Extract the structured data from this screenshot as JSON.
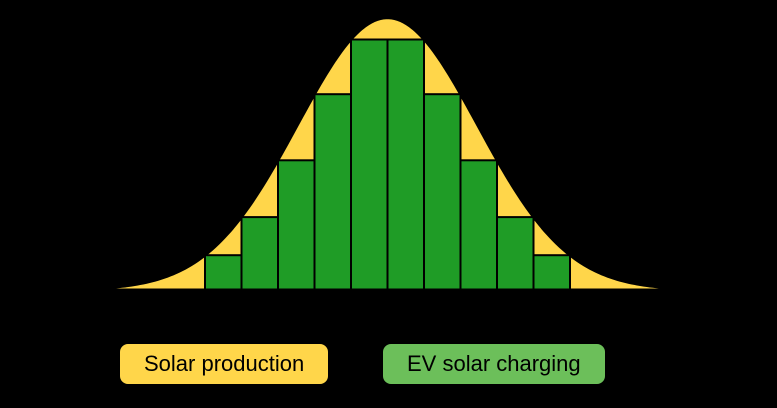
{
  "chart_data": {
    "type": "area",
    "title": "",
    "axes_visible": false,
    "xlabel": "",
    "ylabel": "",
    "x_range": [
      0,
      1
    ],
    "y_range": [
      0,
      1
    ],
    "baseline": 0,
    "series": [
      {
        "name": "Solar production",
        "kind": "smooth-bell-curve",
        "shape": "gaussian",
        "color": "#FFD64A",
        "outline_color": "#000000",
        "peak": 1.0,
        "center": 0.5,
        "sigma": 0.162
      },
      {
        "name": "EV solar charging",
        "kind": "inscribed-step-bars",
        "color": "#1F9C26",
        "outline_color": "#000000",
        "bar_count": 10,
        "bar_heights": [
          0.128,
          0.268,
          0.477,
          0.72,
          0.921,
          0.921,
          0.72,
          0.477,
          0.268,
          0.128
        ]
      }
    ],
    "legend_position": "bottom"
  },
  "legend": {
    "items": [
      {
        "label": "Solar production",
        "color": "#FFD64A",
        "text_color": "#000000"
      },
      {
        "label": "EV solar charging",
        "color": "#6CBF5A",
        "text_color": "#000000"
      }
    ]
  },
  "background_color": "#000000"
}
